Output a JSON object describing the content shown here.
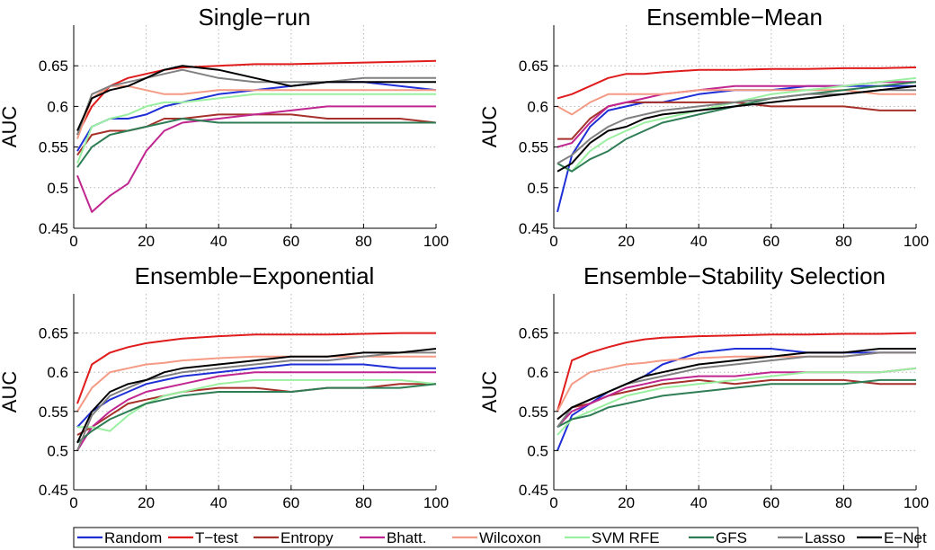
{
  "colors": {
    "Random": "#1f2fd6",
    "T-test": "#e01b1b",
    "Entropy": "#a6302a",
    "Bhatt.": "#c0268f",
    "Wilcoxon": "#f49a85",
    "SVM RFE": "#9af0a0",
    "GFS": "#2e7d54",
    "Lasso": "#808080",
    "E-Net": "#000000"
  },
  "legend": {
    "entries": [
      "Random",
      "T-test",
      "Entropy",
      "Bhatt.",
      "Wilcoxon",
      "SVM RFE",
      "GFS",
      "Lasso",
      "E-Net"
    ],
    "placement": "bottom"
  },
  "chart_data": [
    {
      "type": "line",
      "title": "Single−run",
      "ylabel": "AUC",
      "xlim": [
        0,
        100
      ],
      "ylim": [
        0.45,
        0.7
      ],
      "xticks": [
        0,
        20,
        40,
        60,
        80,
        100
      ],
      "yticks": [
        0.45,
        0.5,
        0.55,
        0.6,
        0.65
      ],
      "ytick_labels": [
        "0.45",
        "0.5",
        "0.55",
        "0.6",
        "0.65"
      ],
      "grid": true,
      "x": [
        1,
        5,
        10,
        15,
        20,
        25,
        30,
        40,
        50,
        60,
        70,
        80,
        90,
        100
      ],
      "series": [
        {
          "name": "Random",
          "values": [
            0.545,
            0.575,
            0.585,
            0.585,
            0.59,
            0.6,
            0.605,
            0.615,
            0.62,
            0.625,
            0.63,
            0.63,
            0.625,
            0.62
          ]
        },
        {
          "name": "T-test",
          "values": [
            0.565,
            0.6,
            0.625,
            0.635,
            0.64,
            0.645,
            0.648,
            0.65,
            0.652,
            0.652,
            0.653,
            0.654,
            0.655,
            0.656
          ]
        },
        {
          "name": "Entropy",
          "values": [
            0.54,
            0.565,
            0.57,
            0.57,
            0.575,
            0.585,
            0.585,
            0.59,
            0.59,
            0.59,
            0.585,
            0.585,
            0.585,
            0.58
          ]
        },
        {
          "name": "Bhatt.",
          "values": [
            0.515,
            0.47,
            0.49,
            0.505,
            0.545,
            0.57,
            0.58,
            0.585,
            0.59,
            0.595,
            0.6,
            0.6,
            0.6,
            0.6
          ]
        },
        {
          "name": "Wilcoxon",
          "values": [
            0.56,
            0.61,
            0.625,
            0.625,
            0.62,
            0.615,
            0.615,
            0.62,
            0.62,
            0.62,
            0.62,
            0.62,
            0.62,
            0.62
          ]
        },
        {
          "name": "SVM RFE",
          "values": [
            0.53,
            0.575,
            0.585,
            0.59,
            0.6,
            0.605,
            0.605,
            0.61,
            0.615,
            0.615,
            0.615,
            0.615,
            0.615,
            0.615
          ]
        },
        {
          "name": "GFS",
          "values": [
            0.525,
            0.55,
            0.565,
            0.57,
            0.575,
            0.58,
            0.585,
            0.58,
            0.58,
            0.58,
            0.58,
            0.58,
            0.58,
            0.58
          ]
        },
        {
          "name": "Lasso",
          "values": [
            0.565,
            0.615,
            0.625,
            0.63,
            0.635,
            0.64,
            0.645,
            0.635,
            0.63,
            0.63,
            0.63,
            0.635,
            0.635,
            0.635
          ]
        },
        {
          "name": "E-Net",
          "values": [
            0.57,
            0.61,
            0.62,
            0.625,
            0.635,
            0.645,
            0.65,
            0.645,
            0.635,
            0.625,
            0.63,
            0.63,
            0.63,
            0.63
          ]
        }
      ]
    },
    {
      "type": "line",
      "title": "Ensemble−Mean",
      "ylabel": "AUC",
      "xlim": [
        0,
        100
      ],
      "ylim": [
        0.45,
        0.7
      ],
      "xticks": [
        0,
        20,
        40,
        60,
        80,
        100
      ],
      "yticks": [
        0.45,
        0.5,
        0.55,
        0.6,
        0.65
      ],
      "ytick_labels": [
        "0.45",
        "0.5",
        "0.55",
        "0.6",
        "0.65"
      ],
      "grid": true,
      "x": [
        1,
        5,
        10,
        15,
        20,
        25,
        30,
        40,
        50,
        60,
        70,
        80,
        90,
        100
      ],
      "series": [
        {
          "name": "Random",
          "values": [
            0.47,
            0.54,
            0.575,
            0.595,
            0.6,
            0.605,
            0.605,
            0.615,
            0.62,
            0.62,
            0.625,
            0.625,
            0.625,
            0.625
          ]
        },
        {
          "name": "T-test",
          "values": [
            0.61,
            0.615,
            0.625,
            0.635,
            0.64,
            0.64,
            0.642,
            0.645,
            0.645,
            0.646,
            0.646,
            0.647,
            0.647,
            0.648
          ]
        },
        {
          "name": "Entropy",
          "values": [
            0.56,
            0.56,
            0.585,
            0.6,
            0.605,
            0.605,
            0.605,
            0.605,
            0.605,
            0.6,
            0.6,
            0.6,
            0.595,
            0.595
          ]
        },
        {
          "name": "Bhatt.",
          "values": [
            0.55,
            0.555,
            0.58,
            0.6,
            0.605,
            0.61,
            0.615,
            0.62,
            0.625,
            0.625,
            0.625,
            0.625,
            0.63,
            0.63
          ]
        },
        {
          "name": "Wilcoxon",
          "values": [
            0.6,
            0.59,
            0.605,
            0.615,
            0.615,
            0.615,
            0.615,
            0.62,
            0.62,
            0.62,
            0.62,
            0.62,
            0.615,
            0.615
          ]
        },
        {
          "name": "SVM RFE",
          "values": [
            0.53,
            0.52,
            0.545,
            0.56,
            0.57,
            0.58,
            0.585,
            0.595,
            0.605,
            0.615,
            0.62,
            0.625,
            0.63,
            0.635
          ]
        },
        {
          "name": "GFS",
          "values": [
            0.53,
            0.52,
            0.535,
            0.545,
            0.56,
            0.57,
            0.58,
            0.59,
            0.6,
            0.61,
            0.615,
            0.62,
            0.625,
            0.63
          ]
        },
        {
          "name": "Lasso",
          "values": [
            0.53,
            0.54,
            0.56,
            0.575,
            0.585,
            0.59,
            0.595,
            0.6,
            0.605,
            0.61,
            0.615,
            0.615,
            0.62,
            0.62
          ]
        },
        {
          "name": "E-Net",
          "values": [
            0.52,
            0.53,
            0.555,
            0.57,
            0.575,
            0.585,
            0.59,
            0.595,
            0.6,
            0.605,
            0.61,
            0.615,
            0.62,
            0.625
          ]
        }
      ]
    },
    {
      "type": "line",
      "title": "Ensemble−Exponential",
      "ylabel": "AUC",
      "xlim": [
        0,
        100
      ],
      "ylim": [
        0.45,
        0.7
      ],
      "xticks": [
        0,
        20,
        40,
        60,
        80,
        100
      ],
      "yticks": [
        0.45,
        0.5,
        0.55,
        0.6,
        0.65
      ],
      "ytick_labels": [
        "0.45",
        "0.5",
        "0.55",
        "0.6",
        "0.65"
      ],
      "grid": true,
      "x": [
        1,
        5,
        10,
        15,
        20,
        25,
        30,
        40,
        50,
        60,
        70,
        80,
        90,
        100
      ],
      "series": [
        {
          "name": "Random",
          "values": [
            0.53,
            0.55,
            0.565,
            0.575,
            0.585,
            0.59,
            0.595,
            0.6,
            0.605,
            0.61,
            0.61,
            0.61,
            0.605,
            0.605
          ]
        },
        {
          "name": "T-test",
          "values": [
            0.56,
            0.61,
            0.625,
            0.632,
            0.637,
            0.64,
            0.643,
            0.646,
            0.648,
            0.648,
            0.648,
            0.649,
            0.65,
            0.65
          ]
        },
        {
          "name": "Entropy",
          "values": [
            0.52,
            0.53,
            0.545,
            0.56,
            0.565,
            0.57,
            0.575,
            0.58,
            0.58,
            0.575,
            0.58,
            0.58,
            0.585,
            0.585
          ]
        },
        {
          "name": "Bhatt.",
          "values": [
            0.5,
            0.53,
            0.55,
            0.565,
            0.575,
            0.58,
            0.585,
            0.595,
            0.6,
            0.6,
            0.6,
            0.6,
            0.6,
            0.6
          ]
        },
        {
          "name": "Wilcoxon",
          "values": [
            0.55,
            0.58,
            0.6,
            0.605,
            0.61,
            0.612,
            0.615,
            0.618,
            0.62,
            0.62,
            0.62,
            0.62,
            0.62,
            0.62
          ]
        },
        {
          "name": "SVM RFE",
          "values": [
            0.53,
            0.53,
            0.525,
            0.545,
            0.56,
            0.57,
            0.575,
            0.585,
            0.59,
            0.59,
            0.59,
            0.59,
            0.59,
            0.585
          ]
        },
        {
          "name": "GFS",
          "values": [
            0.51,
            0.525,
            0.54,
            0.55,
            0.56,
            0.565,
            0.57,
            0.575,
            0.575,
            0.575,
            0.58,
            0.58,
            0.58,
            0.585
          ]
        },
        {
          "name": "Lasso",
          "values": [
            0.5,
            0.545,
            0.57,
            0.58,
            0.59,
            0.595,
            0.6,
            0.605,
            0.61,
            0.615,
            0.615,
            0.62,
            0.625,
            0.625
          ]
        },
        {
          "name": "E-Net",
          "values": [
            0.51,
            0.55,
            0.575,
            0.585,
            0.59,
            0.6,
            0.605,
            0.61,
            0.615,
            0.62,
            0.62,
            0.625,
            0.625,
            0.63
          ]
        }
      ]
    },
    {
      "type": "line",
      "title": "Ensemble−Stability Selection",
      "ylabel": "AUC",
      "xlim": [
        0,
        100
      ],
      "ylim": [
        0.45,
        0.7
      ],
      "xticks": [
        0,
        20,
        40,
        60,
        80,
        100
      ],
      "yticks": [
        0.45,
        0.5,
        0.55,
        0.6,
        0.65
      ],
      "ytick_labels": [
        "0.45",
        "0.5",
        "0.55",
        "0.6",
        "0.65"
      ],
      "grid": true,
      "x": [
        1,
        5,
        10,
        15,
        20,
        25,
        30,
        40,
        50,
        60,
        70,
        80,
        90,
        100
      ],
      "series": [
        {
          "name": "Random",
          "values": [
            0.5,
            0.545,
            0.56,
            0.575,
            0.585,
            0.595,
            0.61,
            0.625,
            0.63,
            0.63,
            0.625,
            0.625,
            0.625,
            0.625
          ]
        },
        {
          "name": "T-test",
          "values": [
            0.55,
            0.615,
            0.625,
            0.632,
            0.638,
            0.642,
            0.644,
            0.646,
            0.647,
            0.648,
            0.648,
            0.649,
            0.649,
            0.65
          ]
        },
        {
          "name": "Entropy",
          "values": [
            0.54,
            0.555,
            0.56,
            0.57,
            0.575,
            0.58,
            0.585,
            0.59,
            0.585,
            0.59,
            0.59,
            0.59,
            0.585,
            0.585
          ]
        },
        {
          "name": "Bhatt.",
          "values": [
            0.53,
            0.55,
            0.56,
            0.57,
            0.58,
            0.585,
            0.59,
            0.595,
            0.595,
            0.6,
            0.6,
            0.6,
            0.6,
            0.605
          ]
        },
        {
          "name": "Wilcoxon",
          "values": [
            0.55,
            0.585,
            0.6,
            0.605,
            0.61,
            0.612,
            0.615,
            0.618,
            0.62,
            0.62,
            0.62,
            0.62,
            0.625,
            0.625
          ]
        },
        {
          "name": "SVM RFE",
          "values": [
            0.52,
            0.54,
            0.55,
            0.56,
            0.57,
            0.575,
            0.58,
            0.585,
            0.59,
            0.595,
            0.6,
            0.6,
            0.6,
            0.605
          ]
        },
        {
          "name": "GFS",
          "values": [
            0.53,
            0.54,
            0.545,
            0.555,
            0.56,
            0.565,
            0.57,
            0.575,
            0.58,
            0.585,
            0.585,
            0.585,
            0.59,
            0.59
          ]
        },
        {
          "name": "Lasso",
          "values": [
            0.53,
            0.555,
            0.565,
            0.575,
            0.585,
            0.59,
            0.595,
            0.605,
            0.61,
            0.615,
            0.62,
            0.62,
            0.625,
            0.625
          ]
        },
        {
          "name": "E-Net",
          "values": [
            0.54,
            0.555,
            0.565,
            0.575,
            0.585,
            0.595,
            0.6,
            0.61,
            0.615,
            0.62,
            0.625,
            0.625,
            0.63,
            0.63
          ]
        }
      ]
    }
  ]
}
